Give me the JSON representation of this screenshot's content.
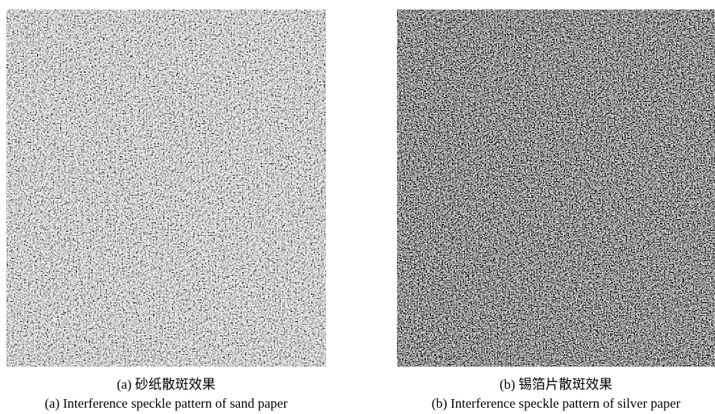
{
  "figures": [
    {
      "caption_cn": "(a) 砂纸散斑效果",
      "caption_en": "(a) Interference speckle pattern of sand paper"
    },
    {
      "caption_cn": "(b) 锡箔片散斑效果",
      "caption_en": "(b) Interference speckle pattern of silver paper"
    }
  ]
}
